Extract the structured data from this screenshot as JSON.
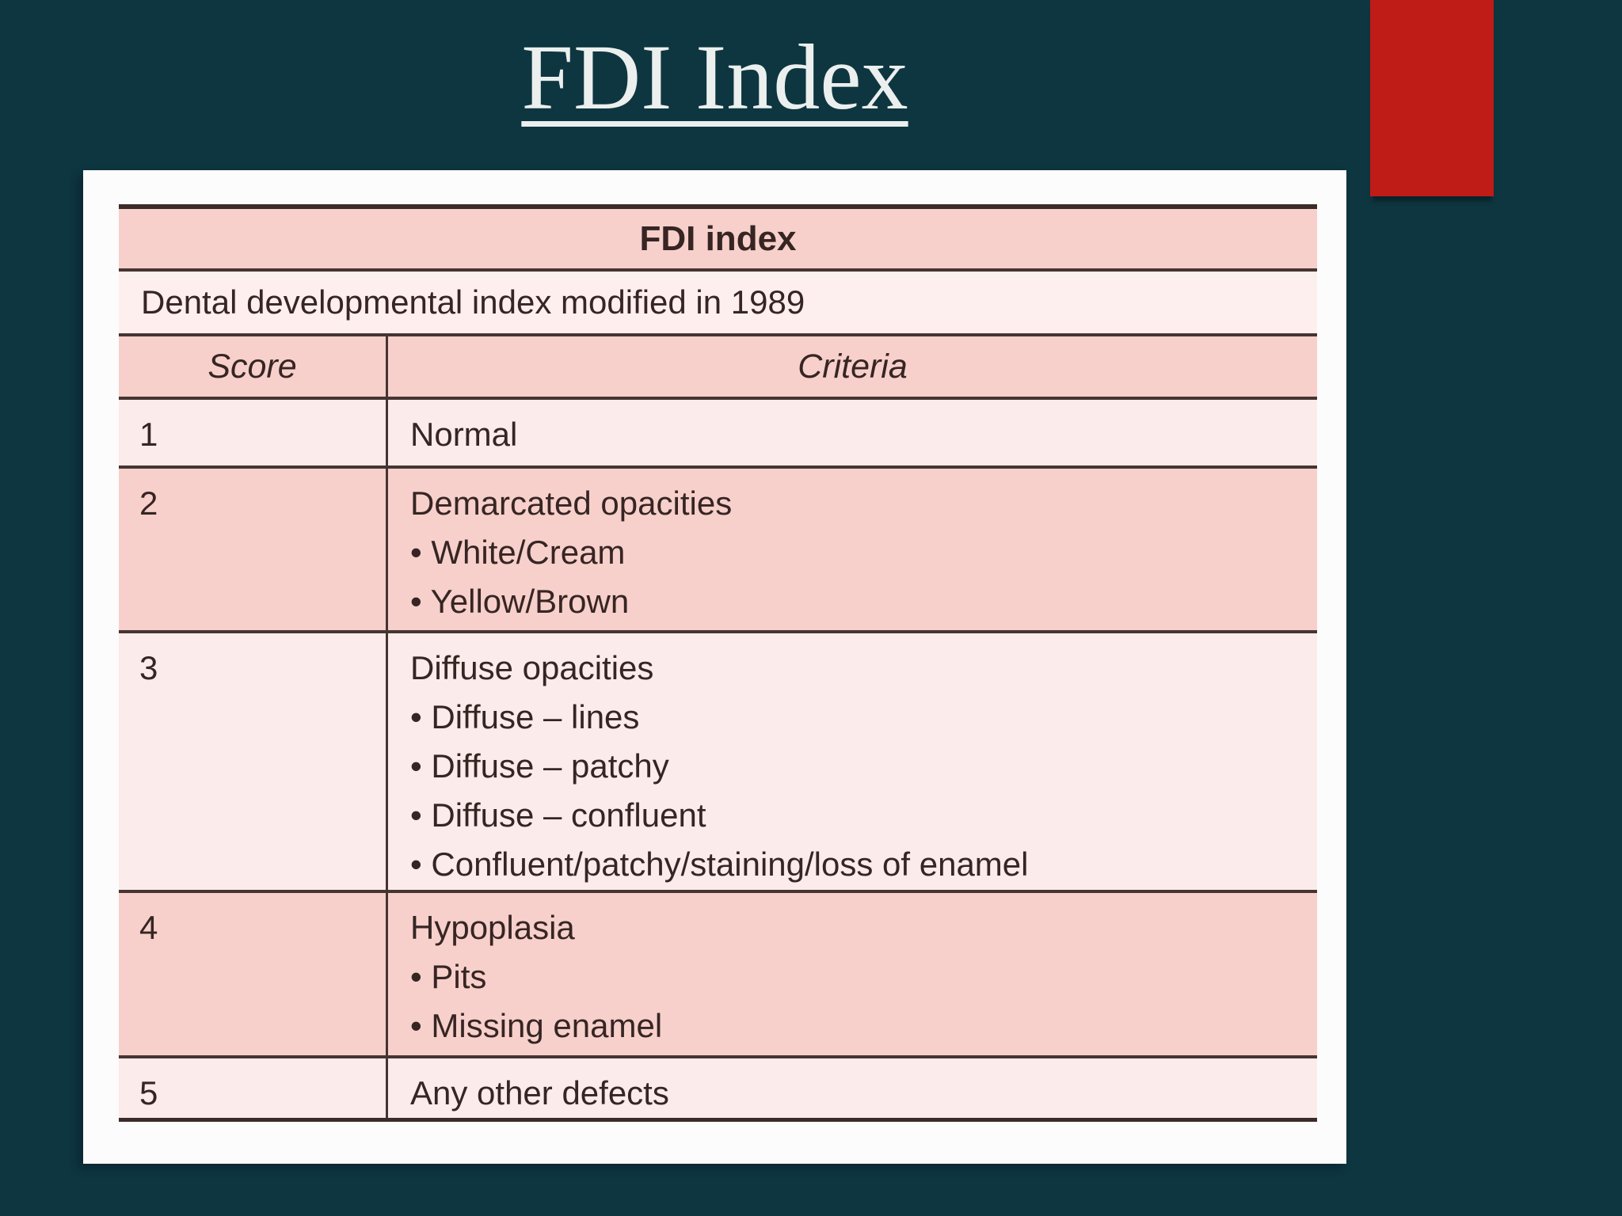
{
  "slide": {
    "title": "FDI Index",
    "colors": {
      "background_teal": "#1c4951",
      "accent_red": "#bf1b17",
      "row_pink": "#f7d0cb",
      "row_light_pink": "#fbebea",
      "table_border": "#463431",
      "table_text": "#362523",
      "title_text": "#ebefee"
    }
  },
  "table": {
    "title": "FDI index",
    "subtitle": "Dental developmental index modified in 1989",
    "columns": [
      "Score",
      "Criteria"
    ],
    "rows": [
      {
        "score": "1",
        "lines": [
          "Normal"
        ]
      },
      {
        "score": "2",
        "lines": [
          "Demarcated opacities",
          "• White/Cream",
          "• Yellow/Brown"
        ]
      },
      {
        "score": "3",
        "lines": [
          "Diffuse opacities",
          "• Diffuse – lines",
          "• Diffuse – patchy",
          "• Diffuse – confluent",
          "• Confluent/patchy/staining/loss of enamel"
        ]
      },
      {
        "score": "4",
        "lines": [
          "Hypoplasia",
          "• Pits",
          "• Missing enamel"
        ]
      },
      {
        "score": "5",
        "lines": [
          "Any other defects"
        ]
      }
    ]
  }
}
